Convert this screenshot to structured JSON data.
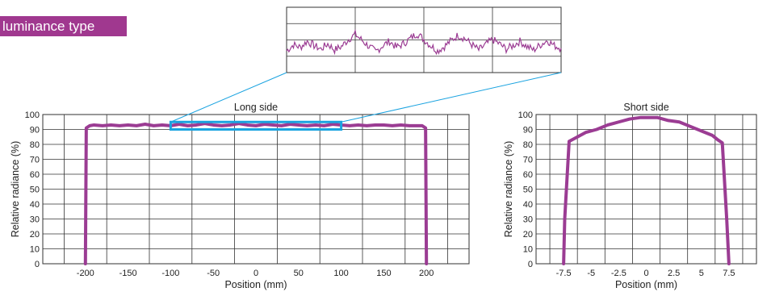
{
  "badge": {
    "text": "luminance type",
    "color": "#a0388f"
  },
  "colors": {
    "series": "#9b3c93",
    "highlight": "#1aa3e0",
    "connector": "#1aa3e0",
    "grid": "#333333"
  },
  "chart_data": [
    {
      "type": "line",
      "title": "Long side",
      "xlabel": "Position (mm)",
      "ylabel": "Relative radiance (%)",
      "xlim": [
        -250,
        250
      ],
      "ylim": [
        0,
        100
      ],
      "xticks": [
        -200,
        -150,
        -100,
        -50,
        0,
        50,
        100,
        150,
        200
      ],
      "yticks": [
        0,
        10,
        20,
        30,
        40,
        50,
        60,
        70,
        80,
        90,
        100
      ],
      "series": [
        {
          "x": [
            -200,
            -199,
            -195,
            -190,
            -180,
            -170,
            -160,
            -150,
            -140,
            -130,
            -120,
            -110,
            -100,
            -90,
            -80,
            -70,
            -60,
            -50,
            -40,
            -30,
            -20,
            -10,
            0,
            10,
            20,
            30,
            40,
            50,
            60,
            70,
            80,
            90,
            100,
            110,
            120,
            130,
            140,
            150,
            160,
            170,
            180,
            190,
            195,
            199,
            200
          ],
          "y": [
            0,
            91,
            92.5,
            93,
            92.5,
            93,
            92.5,
            93,
            92.5,
            93.5,
            92.5,
            93,
            92.5,
            93.5,
            92.5,
            93,
            94,
            93,
            92.5,
            93,
            94,
            93,
            92.5,
            93.5,
            93,
            92.5,
            93.5,
            93,
            92.5,
            93,
            92.5,
            93.5,
            93,
            92.5,
            93,
            92.5,
            93,
            93,
            92.5,
            93,
            92.5,
            92.5,
            92.5,
            91,
            0
          ]
        }
      ],
      "highlight_range": {
        "x": [
          -100,
          100
        ],
        "y": [
          90,
          95
        ]
      },
      "inset": {
        "x": [
          -100,
          -95,
          -90,
          -85,
          -80,
          -75,
          -70,
          -65,
          -60,
          -55,
          -50,
          -45,
          -40,
          -35,
          -30,
          -25,
          -20,
          -15,
          -10,
          -5,
          0,
          5,
          10,
          15,
          20,
          25,
          30,
          35,
          40,
          45,
          50,
          55,
          60,
          65,
          70,
          75,
          80,
          85,
          90,
          95,
          100
        ],
        "y": [
          92.5,
          93.2,
          92.9,
          93.6,
          93.1,
          92.7,
          93.3,
          92.6,
          93.0,
          93.8,
          94.4,
          93.7,
          93.0,
          92.4,
          93.1,
          93.6,
          92.9,
          93.3,
          93.9,
          94.5,
          93.8,
          93.1,
          92.5,
          93.0,
          93.7,
          94.3,
          93.9,
          93.2,
          92.6,
          93.2,
          93.8,
          93.3,
          92.7,
          93.1,
          93.6,
          93.0,
          92.6,
          93.2,
          93.7,
          93.1,
          92.8
        ]
      }
    },
    {
      "type": "line",
      "title": "Short side",
      "xlabel": "Position (mm)",
      "ylabel": "Relative radiance (%)",
      "xlim": [
        -10,
        10
      ],
      "ylim": [
        0,
        100
      ],
      "xticks": [
        -7.5,
        -5,
        -2.5,
        0,
        2.5,
        5,
        7.5
      ],
      "xtick_labels": [
        "-7.5",
        "-5",
        "-2.5",
        "0",
        "2.5",
        "5",
        "7.5"
      ],
      "yticks": [
        0,
        10,
        20,
        30,
        40,
        50,
        60,
        70,
        80,
        90,
        100
      ],
      "series": [
        {
          "x": [
            -7.5,
            -7.4,
            -7.0,
            -6.5,
            -5.5,
            -4.5,
            -3.5,
            -2.5,
            -1.5,
            -0.5,
            0,
            1.0,
            2.0,
            3.0,
            4.0,
            5.0,
            6.0,
            6.5,
            6.9,
            7.3,
            7.5
          ],
          "y": [
            0,
            30,
            82,
            84,
            88,
            90,
            93,
            95,
            97,
            98,
            98,
            98,
            96,
            95,
            92,
            89,
            86,
            83,
            81,
            30,
            0
          ]
        }
      ]
    }
  ]
}
